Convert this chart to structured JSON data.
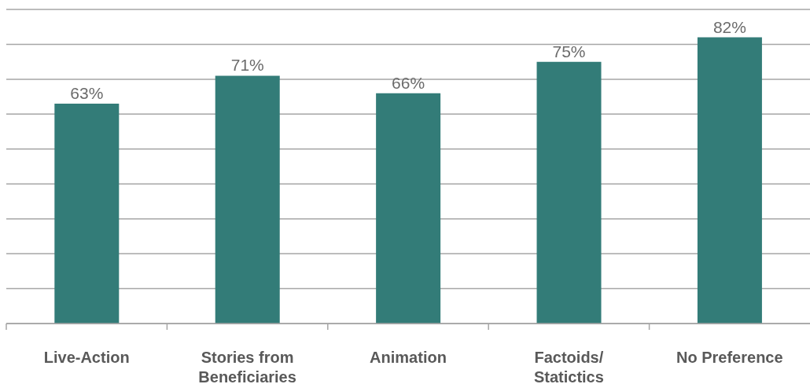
{
  "chart_data": {
    "type": "bar",
    "categories": [
      "Live-Action",
      "Stories from Beneficiaries",
      "Animation",
      "Factoids/ Statictics",
      "No Preference"
    ],
    "values": [
      63,
      71,
      66,
      75,
      82
    ],
    "value_labels": [
      "63%",
      "71%",
      "66%",
      "75%",
      "82%"
    ],
    "color": "#337c78",
    "ylim": [
      0,
      90
    ],
    "yticks": [
      {
        "value": 0,
        "label": null
      },
      {
        "value": 10,
        "label": null
      },
      {
        "value": 20,
        "label": null
      },
      {
        "value": 30,
        "label": null
      },
      {
        "value": 40,
        "label": null
      },
      {
        "value": 50,
        "label": null
      },
      {
        "value": 60,
        "label": null
      },
      {
        "value": 70,
        "label": null
      },
      {
        "value": 80,
        "label": null
      },
      {
        "value": 90,
        "label": null
      }
    ],
    "grid": "y",
    "tick_labels": "x"
  }
}
